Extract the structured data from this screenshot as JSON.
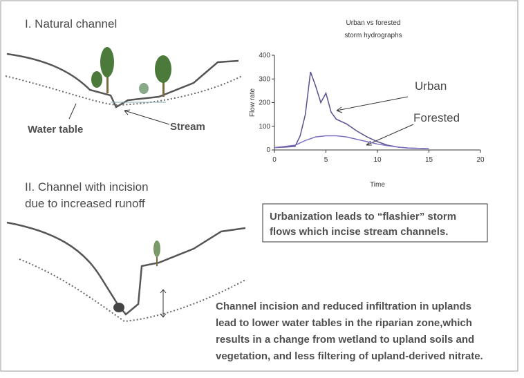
{
  "panel1": {
    "heading": "I. Natural channel",
    "water_table": "Water table",
    "stream": "Stream"
  },
  "panel2": {
    "heading": [
      "II.  Channel with incision",
      "due to increased runoff"
    ]
  },
  "box_text": [
    "Urbanization leads to “flashier” storm",
    "flows which incise stream channels."
  ],
  "caption": [
    "Channel incision and reduced infiltration in uplands",
    "lead to lower water tables in the riparian zone,which",
    "results in a change from wetland to upland soils and",
    "vegetation, and less filtering of upland-derived nitrate."
  ],
  "chart_data": {
    "type": "line",
    "title": [
      "Urban vs forested",
      "storm hydrographs"
    ],
    "x_label": "Time",
    "y_label": "Flow rate",
    "xlim": [
      0,
      20
    ],
    "xticks": [
      0,
      5,
      10,
      15,
      20
    ],
    "ylim": [
      0,
      400
    ],
    "yticks": [
      0,
      100,
      200,
      300,
      400
    ],
    "series": [
      {
        "name": "Urban",
        "color": "#5a4f8f",
        "x": [
          0,
          1,
          2,
          2.5,
          3,
          3.5,
          4,
          4.5,
          5,
          5.5,
          6,
          7,
          8,
          9,
          10,
          11,
          12,
          13,
          15
        ],
        "values": [
          10,
          12,
          15,
          60,
          150,
          330,
          270,
          200,
          240,
          160,
          130,
          110,
          80,
          55,
          35,
          20,
          12,
          8,
          5
        ]
      },
      {
        "name": "Forested",
        "color": "#7a6fc0",
        "x": [
          0,
          2,
          3,
          4,
          5,
          6,
          7,
          8,
          9,
          10,
          11,
          12,
          13,
          15
        ],
        "values": [
          10,
          20,
          40,
          55,
          60,
          60,
          55,
          45,
          35,
          25,
          18,
          12,
          8,
          5
        ]
      }
    ]
  }
}
